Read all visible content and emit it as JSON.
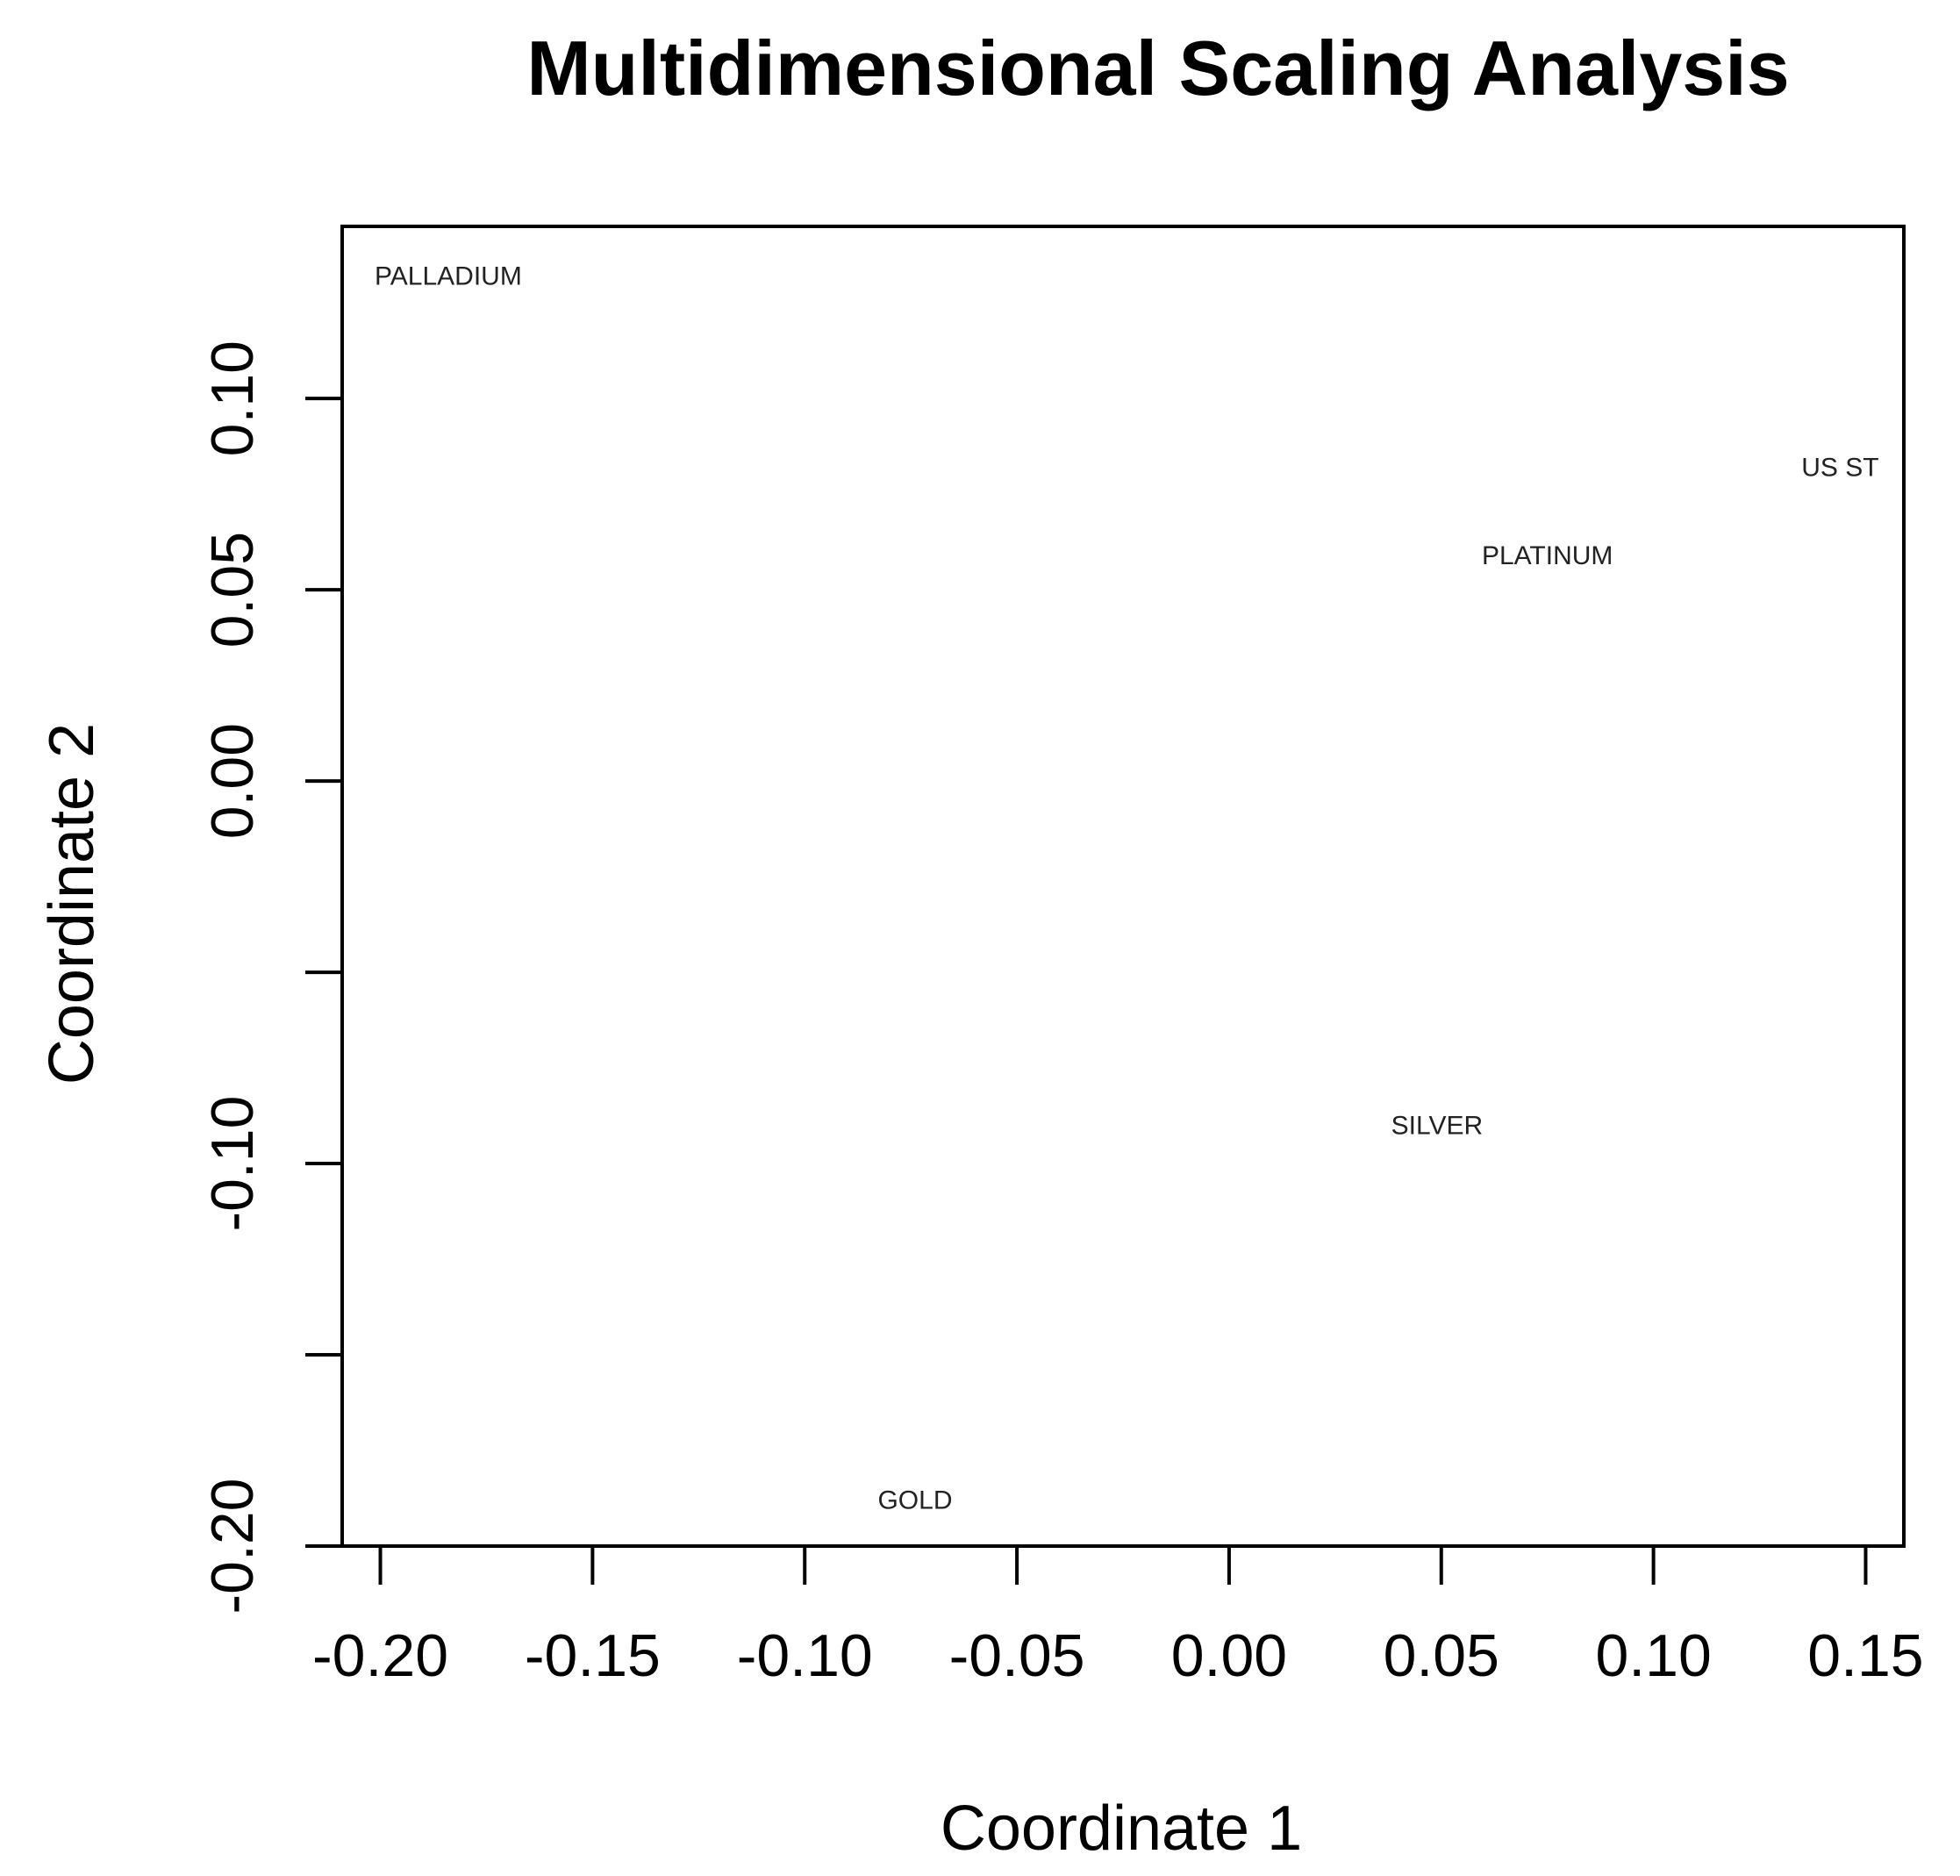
{
  "chart_data": {
    "type": "scatter",
    "title": "Multidimensional Scaling Analysis",
    "xlabel": "Coordinate 1",
    "ylabel": "Coordinate 2",
    "xlim": [
      -0.209,
      0.159
    ],
    "ylim": [
      -0.2,
      0.145
    ],
    "x_ticks": [
      -0.2,
      -0.15,
      -0.1,
      -0.05,
      0.0,
      0.05,
      0.1,
      0.15
    ],
    "x_tick_labels": [
      "-0.20",
      "-0.15",
      "-0.10",
      "-0.05",
      "0.00",
      "0.05",
      "0.10",
      "0.15"
    ],
    "y_ticks": [
      -0.2,
      -0.15,
      -0.1,
      -0.05,
      0.0,
      0.05,
      0.1
    ],
    "y_tick_labels": [
      "-0.20",
      "",
      "-0.10",
      "",
      "0.00",
      "0.05",
      "0.10"
    ],
    "grid": false,
    "points": [
      {
        "label": "PALLADIUM",
        "x": -0.184,
        "y": 0.132
      },
      {
        "label": "US ST",
        "x": 0.144,
        "y": 0.082
      },
      {
        "label": "PLATINUM",
        "x": 0.075,
        "y": 0.059
      },
      {
        "label": "SILVER",
        "x": 0.049,
        "y": -0.09
      },
      {
        "label": "GOLD",
        "x": -0.074,
        "y": -0.188
      }
    ],
    "point_color": "#222222"
  }
}
